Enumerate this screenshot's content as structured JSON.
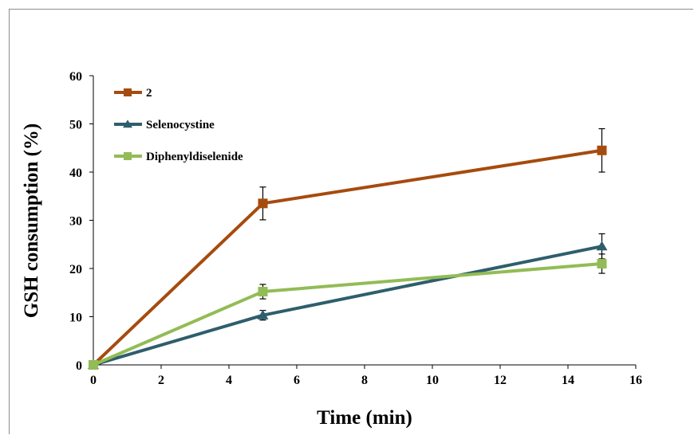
{
  "chart_data": {
    "type": "line",
    "xlabel": "Time (min)",
    "ylabel": "GSH consumption (%)",
    "xlim": [
      0,
      16
    ],
    "ylim": [
      0,
      60
    ],
    "x_ticks": [
      "0",
      "2",
      "4",
      "6",
      "8",
      "10",
      "12",
      "14",
      "16"
    ],
    "y_ticks": [
      "0",
      "10",
      "20",
      "30",
      "40",
      "50",
      "60"
    ],
    "x": [
      0,
      5,
      15
    ],
    "grid": false,
    "legend_position": "top-left",
    "series": [
      {
        "name": "2",
        "values": [
          0,
          33.5,
          44.5
        ],
        "errors": [
          0,
          3.4,
          4.5
        ],
        "color": "#a64b0e",
        "marker": "square"
      },
      {
        "name": "Selenocystine",
        "values": [
          0,
          10.3,
          24.6
        ],
        "errors": [
          0,
          1.0,
          2.6
        ],
        "color": "#2e5e6c",
        "marker": "triangle"
      },
      {
        "name": "Diphenyldiselenide",
        "values": [
          0,
          15.2,
          21.0
        ],
        "errors": [
          0,
          1.5,
          2.0
        ],
        "color": "#92bc55",
        "marker": "square"
      }
    ]
  }
}
